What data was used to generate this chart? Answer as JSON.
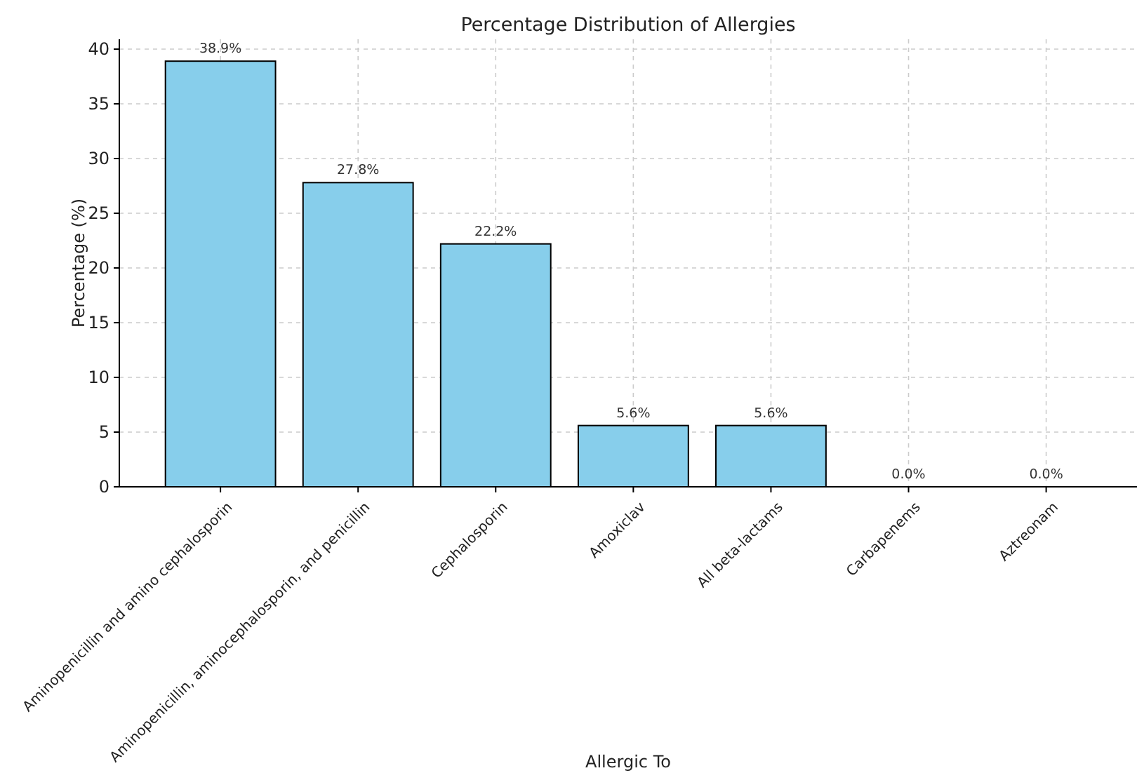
{
  "chart_data": {
    "type": "bar",
    "title": "Percentage Distribution of Allergies",
    "xlabel": "Allergic To",
    "ylabel": "Percentage (%)",
    "categories": [
      "Aminopenicillin and amino cephalosporin",
      "Aminopenicillin, aminocephalosporin, and penicillin",
      "Cephalosporin",
      "Amoxiclav",
      "All beta-lactams",
      "Carbapenems",
      "Aztreonam"
    ],
    "values": [
      38.9,
      27.8,
      22.2,
      5.6,
      5.6,
      0.0,
      0.0
    ],
    "value_labels": [
      "38.9%",
      "27.8%",
      "22.2%",
      "5.6%",
      "5.6%",
      "0.0%",
      "0.0%"
    ],
    "color": "#87ceeb",
    "ylim": [
      0,
      40.9
    ],
    "yticks": [
      0,
      5,
      10,
      15,
      20,
      25,
      30,
      35,
      40
    ],
    "grid": true
  }
}
